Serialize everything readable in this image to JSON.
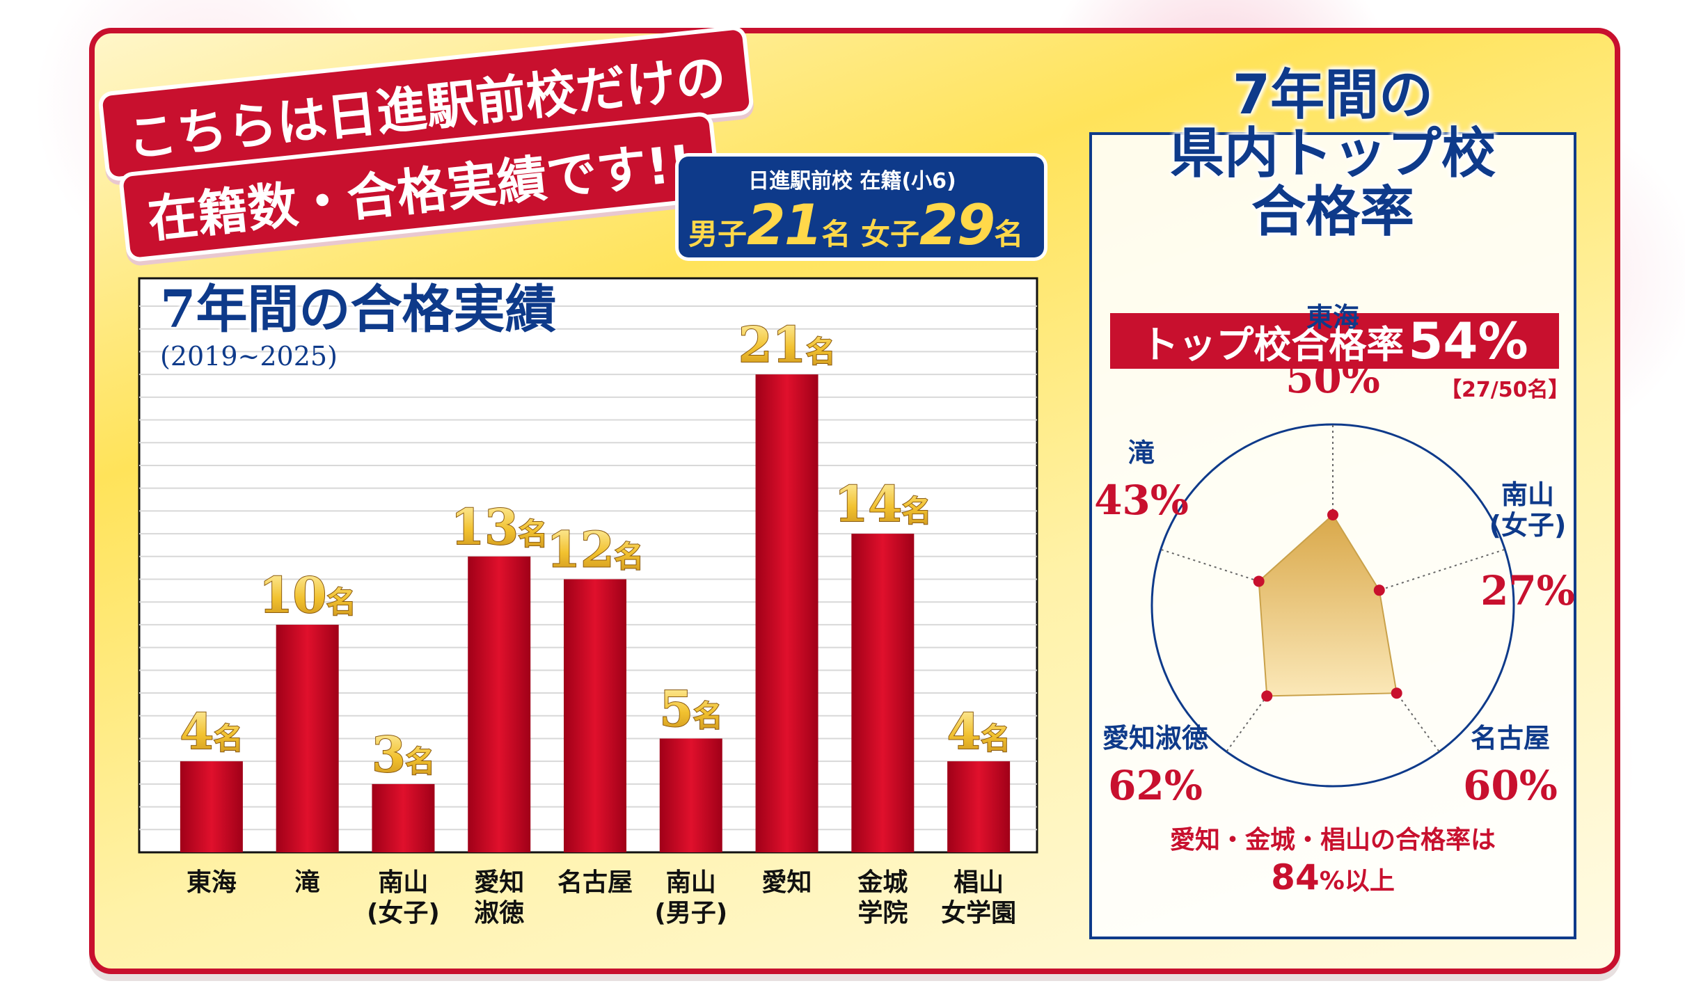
{
  "title": {
    "line1": "こちらは日進駅前校だけの",
    "line2": "在籍数・合格実績です!!"
  },
  "enrollment": {
    "heading": "日進駅前校 在籍(小6)",
    "boys_label": "男子",
    "boys_count": "21",
    "girls_label": "女子",
    "girls_count": "29",
    "unit": "名"
  },
  "chart_title": "7年間の合格実績",
  "chart_subtitle": "(2019~2025)",
  "right": {
    "title_line1": "7年間の",
    "title_line2": "県内トップ校",
    "title_line3": "合格率",
    "banner_label": "トップ校合格率",
    "banner_pct": "54%",
    "count": "【27/50名】",
    "footnote_line1": "愛知・金城・椙山の合格率は",
    "footnote_line2": "84",
    "footnote_suffix": "%以上"
  },
  "colors": {
    "red": "#c8102e",
    "navy": "#0e3a8a",
    "gold": "#f2c230",
    "radar_fill": "#e8c678"
  },
  "chart_data": [
    {
      "type": "bar",
      "title": "7年間の合格実績",
      "subtitle": "(2019~2025)",
      "categories": [
        "東海",
        "滝",
        "南山\n(女子)",
        "愛知\n淑徳",
        "名古屋",
        "南山\n(男子)",
        "愛知",
        "金城\n学院",
        "椙山\n女学園"
      ],
      "values": [
        4,
        10,
        3,
        13,
        12,
        5,
        21,
        14,
        4
      ],
      "value_labels": [
        "4名",
        "10名",
        "3名",
        "13名",
        "12名",
        "5名",
        "21名",
        "14名",
        "4名"
      ],
      "ylim": [
        0,
        24
      ],
      "grid": true,
      "unit": "名"
    },
    {
      "type": "radar",
      "title": "県内トップ校合格率",
      "categories": [
        "東海",
        "南山(女子)",
        "名古屋",
        "愛知淑徳",
        "滝"
      ],
      "label_lines": [
        [
          "東海"
        ],
        [
          "南山",
          "(女子)"
        ],
        [
          "名古屋"
        ],
        [
          "愛知淑徳"
        ],
        [
          "滝"
        ]
      ],
      "values": [
        50,
        27,
        60,
        62,
        43
      ],
      "value_labels": [
        "50%",
        "27%",
        "60%",
        "62%",
        "43%"
      ],
      "range": [
        0,
        100
      ]
    }
  ]
}
